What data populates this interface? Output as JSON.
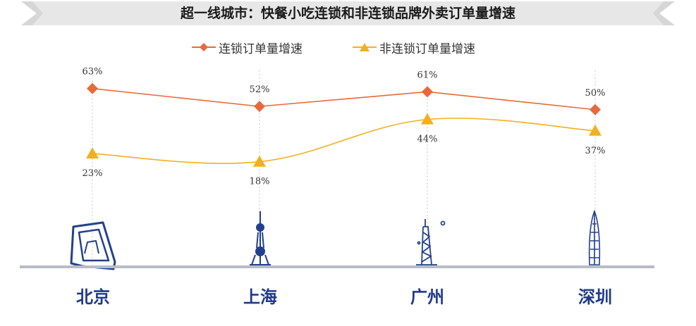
{
  "title": "超一线城市：快餐小吃连锁和非连锁品牌外卖订单量增速",
  "colors": {
    "chain": "#e8693a",
    "nonchain": "#f2b01e",
    "city_label": "#1f3a8a",
    "landmark": "#23408e",
    "baseline": "#b8bcc6"
  },
  "chart_data": {
    "type": "line",
    "categories": [
      "北京",
      "上海",
      "广州",
      "深圳"
    ],
    "series": [
      {
        "name": "连锁订单量增速",
        "values": [
          63,
          52,
          61,
          50
        ],
        "labels": [
          "63%",
          "52%",
          "61%",
          "50%"
        ],
        "marker": "diamond"
      },
      {
        "name": "非连锁订单量增速",
        "values": [
          23,
          18,
          44,
          37
        ],
        "labels": [
          "23%",
          "18%",
          "44%",
          "37%"
        ],
        "marker": "triangle"
      }
    ],
    "unit": "%",
    "legend": "top-center",
    "grid": false
  },
  "landmark_icons": [
    "cctv-tower-icon",
    "oriental-pearl-tower-icon",
    "canton-tower-icon",
    "ping-an-tower-icon"
  ]
}
